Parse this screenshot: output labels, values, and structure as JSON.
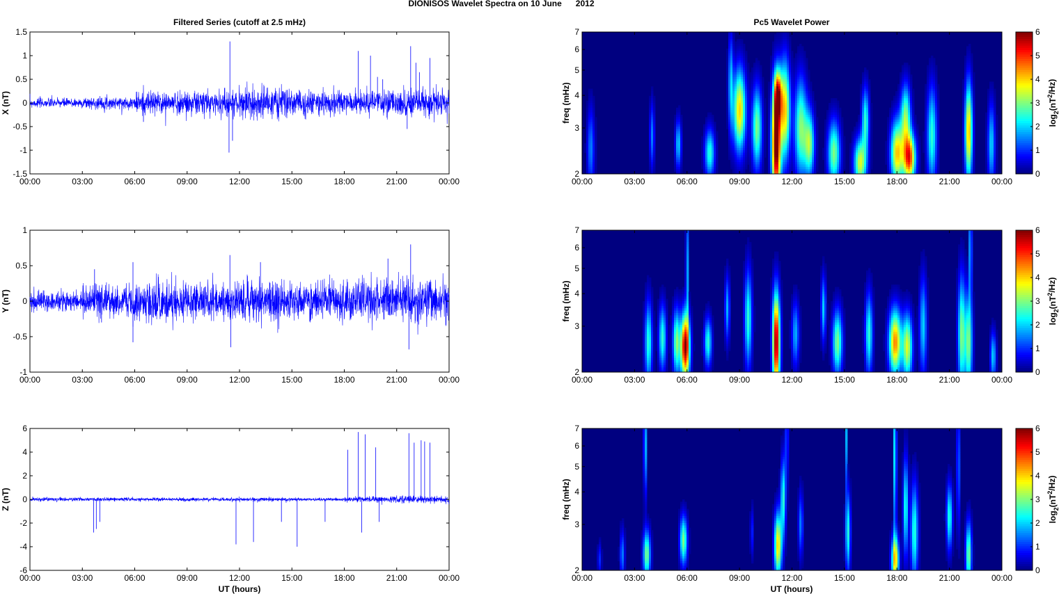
{
  "chart_data": {
    "title": "DIONISOS Wavelet Spectra on 10 June      2012",
    "left_title": "Filtered Series (cutoff at 2.5 mHz)",
    "right_title": "Pc5 Wavelet Power",
    "xlabel": "UT (hours)",
    "xticks": [
      "00:00",
      "03:00",
      "06:00",
      "09:00",
      "12:00",
      "15:00",
      "18:00",
      "21:00",
      "00:00"
    ],
    "xlim": [
      0,
      24
    ],
    "freq_label": "freq (mHz)",
    "freq_ticks": [
      "2",
      "3",
      "4",
      "5",
      "6",
      "7"
    ],
    "freq_lim": [
      2,
      7
    ],
    "colorbar": {
      "label": "log2(nT2/Hz)",
      "ticks": [
        "0",
        "1",
        "2",
        "3",
        "4",
        "5",
        "6"
      ],
      "lim": [
        0,
        6
      ],
      "colormap": "jet"
    },
    "series": [
      {
        "type": "line",
        "name": "X",
        "ylabel": "X (nT)",
        "ylim": [
          -1.5,
          1.5
        ],
        "yticks": [
          "1.5",
          "1",
          "0.5",
          "0",
          "-0.5",
          "-1",
          "-1.5"
        ],
        "color": "#0000ff",
        "noise_by_3h": [
          0.05,
          0.06,
          0.12,
          0.14,
          0.16,
          0.13,
          0.12,
          0.14
        ],
        "spikes": [
          [
            11.45,
            1.3
          ],
          [
            11.4,
            -1.05
          ],
          [
            11.6,
            -0.8
          ],
          [
            18.8,
            1.1
          ],
          [
            19.5,
            1.0
          ],
          [
            19.9,
            0.55
          ],
          [
            20.2,
            0.5
          ],
          [
            21.8,
            1.2
          ],
          [
            22.1,
            0.85
          ],
          [
            22.3,
            0.65
          ],
          [
            22.9,
            0.95
          ],
          [
            21.6,
            -0.55
          ],
          [
            6.5,
            -0.4
          ]
        ]
      },
      {
        "type": "line",
        "name": "Y",
        "ylabel": "Y (nT)",
        "ylim": [
          -1,
          1
        ],
        "yticks": [
          "1",
          "0.5",
          "0",
          "-0.5",
          "-1"
        ],
        "color": "#0000ff",
        "noise_by_3h": [
          0.07,
          0.12,
          0.14,
          0.12,
          0.14,
          0.13,
          0.15,
          0.16
        ],
        "spikes": [
          [
            11.45,
            0.65
          ],
          [
            11.5,
            -0.65
          ],
          [
            5.9,
            0.55
          ],
          [
            5.9,
            -0.58
          ],
          [
            13.2,
            0.55
          ],
          [
            21.8,
            0.8
          ],
          [
            21.7,
            -0.68
          ],
          [
            20.5,
            0.6
          ],
          [
            3.7,
            0.45
          ],
          [
            4.1,
            -0.3
          ]
        ]
      },
      {
        "type": "line",
        "name": "Z",
        "ylabel": "Z (nT)",
        "ylim": [
          -6,
          6
        ],
        "yticks": [
          "6",
          "4",
          "2",
          "0",
          "-2",
          "-4",
          "-6"
        ],
        "color": "#0000ff",
        "noise_by_3h": [
          0.08,
          0.08,
          0.07,
          0.07,
          0.08,
          0.07,
          0.12,
          0.15
        ],
        "spikes": [
          [
            3.65,
            -2.8
          ],
          [
            3.8,
            -2.5
          ],
          [
            4.0,
            -1.9
          ],
          [
            11.8,
            -3.8
          ],
          [
            12.8,
            -3.6
          ],
          [
            14.4,
            -1.9
          ],
          [
            15.3,
            -4.0
          ],
          [
            16.9,
            -1.9
          ],
          [
            18.2,
            4.2
          ],
          [
            18.8,
            5.7
          ],
          [
            19.0,
            -2.8
          ],
          [
            19.2,
            5.5
          ],
          [
            19.8,
            4.4
          ],
          [
            20.0,
            -1.9
          ],
          [
            21.7,
            5.6
          ],
          [
            22.0,
            4.8
          ],
          [
            22.4,
            5.0
          ],
          [
            22.6,
            4.9
          ],
          [
            22.9,
            4.8
          ]
        ]
      }
    ],
    "spectra": [
      {
        "type": "heatmap",
        "name": "X power",
        "blobs": [
          [
            11.1,
            2.6,
            6.5,
            0.18,
            0.35
          ],
          [
            11.2,
            4.0,
            4,
            0.15,
            0.15
          ],
          [
            11.6,
            3.5,
            4,
            0.2,
            0.3
          ],
          [
            9.0,
            3.5,
            4,
            0.25,
            0.25
          ],
          [
            10.0,
            3.0,
            3,
            0.2,
            0.25
          ],
          [
            12.5,
            3.0,
            3,
            0.25,
            0.3
          ],
          [
            13.0,
            2.6,
            3,
            0.2,
            0.2
          ],
          [
            14.4,
            2.4,
            3,
            0.25,
            0.2
          ],
          [
            15.9,
            2.2,
            3.5,
            0.25,
            0.15
          ],
          [
            16.2,
            3.2,
            2.5,
            0.15,
            0.2
          ],
          [
            18.0,
            2.4,
            4,
            0.25,
            0.2
          ],
          [
            18.7,
            2.3,
            5,
            0.25,
            0.15
          ],
          [
            18.5,
            3.3,
            3,
            0.2,
            0.2
          ],
          [
            20.0,
            2.8,
            2.5,
            0.2,
            0.3
          ],
          [
            22.1,
            2.9,
            4.2,
            0.15,
            0.3
          ],
          [
            23.4,
            2.6,
            2,
            0.15,
            0.25
          ],
          [
            7.3,
            2.4,
            2.5,
            0.2,
            0.15
          ],
          [
            5.5,
            2.6,
            2,
            0.12,
            0.15
          ],
          [
            4.0,
            2.8,
            1.5,
            0.1,
            0.2
          ],
          [
            0.5,
            2.5,
            1.5,
            0.15,
            0.25
          ],
          [
            8.5,
            4.5,
            1.8,
            0.1,
            0.3
          ]
        ]
      },
      {
        "type": "heatmap",
        "name": "Y power",
        "blobs": [
          [
            5.9,
            2.5,
            6,
            0.18,
            0.2
          ],
          [
            5.4,
            2.6,
            3,
            0.15,
            0.2
          ],
          [
            6.0,
            5.0,
            2,
            0.05,
            0.4
          ],
          [
            11.1,
            2.6,
            6,
            0.15,
            0.3
          ],
          [
            17.9,
            2.6,
            4.5,
            0.25,
            0.2
          ],
          [
            18.6,
            2.5,
            3.5,
            0.2,
            0.2
          ],
          [
            3.8,
            2.6,
            2.5,
            0.15,
            0.25
          ],
          [
            4.6,
            2.7,
            2.5,
            0.15,
            0.2
          ],
          [
            7.2,
            2.6,
            2.5,
            0.15,
            0.15
          ],
          [
            9.5,
            3.2,
            2.5,
            0.15,
            0.3
          ],
          [
            12.2,
            2.8,
            1.8,
            0.15,
            0.2
          ],
          [
            14.6,
            2.6,
            3,
            0.2,
            0.2
          ],
          [
            13.8,
            3.5,
            2,
            0.1,
            0.2
          ],
          [
            16.4,
            2.8,
            2.5,
            0.15,
            0.25
          ],
          [
            19.5,
            3.0,
            2,
            0.15,
            0.3
          ],
          [
            21.7,
            2.8,
            3,
            0.15,
            0.35
          ],
          [
            22.1,
            2.6,
            3,
            0.15,
            0.3
          ],
          [
            22.2,
            6.0,
            2.5,
            0.05,
            0.3
          ],
          [
            23.5,
            2.3,
            2,
            0.12,
            0.15
          ],
          [
            8.3,
            3.5,
            1.8,
            0.1,
            0.2
          ]
        ]
      },
      {
        "type": "heatmap",
        "name": "Z power",
        "blobs": [
          [
            3.7,
            2.3,
            3,
            0.15,
            0.15
          ],
          [
            3.6,
            6.0,
            2.5,
            0.05,
            0.3
          ],
          [
            5.8,
            2.6,
            3,
            0.15,
            0.15
          ],
          [
            11.2,
            2.5,
            4,
            0.15,
            0.2
          ],
          [
            11.5,
            3.8,
            2.5,
            0.1,
            0.25
          ],
          [
            11.7,
            6.5,
            2.5,
            0.04,
            0.3
          ],
          [
            17.9,
            2.2,
            4,
            0.15,
            0.15
          ],
          [
            17.9,
            5.5,
            4.5,
            0.04,
            0.5
          ],
          [
            15.2,
            2.8,
            2.5,
            0.1,
            0.25
          ],
          [
            15.1,
            6.5,
            1.8,
            0.04,
            0.3
          ],
          [
            19.0,
            2.8,
            2.5,
            0.15,
            0.3
          ],
          [
            18.5,
            3.5,
            2.5,
            0.1,
            0.3
          ],
          [
            21.0,
            3.2,
            2.5,
            0.12,
            0.2
          ],
          [
            22.1,
            2.3,
            3,
            0.12,
            0.2
          ],
          [
            21.5,
            5.0,
            2,
            0.05,
            0.4
          ],
          [
            2.3,
            2.3,
            1.5,
            0.1,
            0.15
          ],
          [
            1.0,
            2.2,
            1,
            0.08,
            0.1
          ],
          [
            12.5,
            3.0,
            1.5,
            0.1,
            0.2
          ],
          [
            9.7,
            2.8,
            1,
            0.06,
            0.15
          ]
        ]
      }
    ]
  }
}
